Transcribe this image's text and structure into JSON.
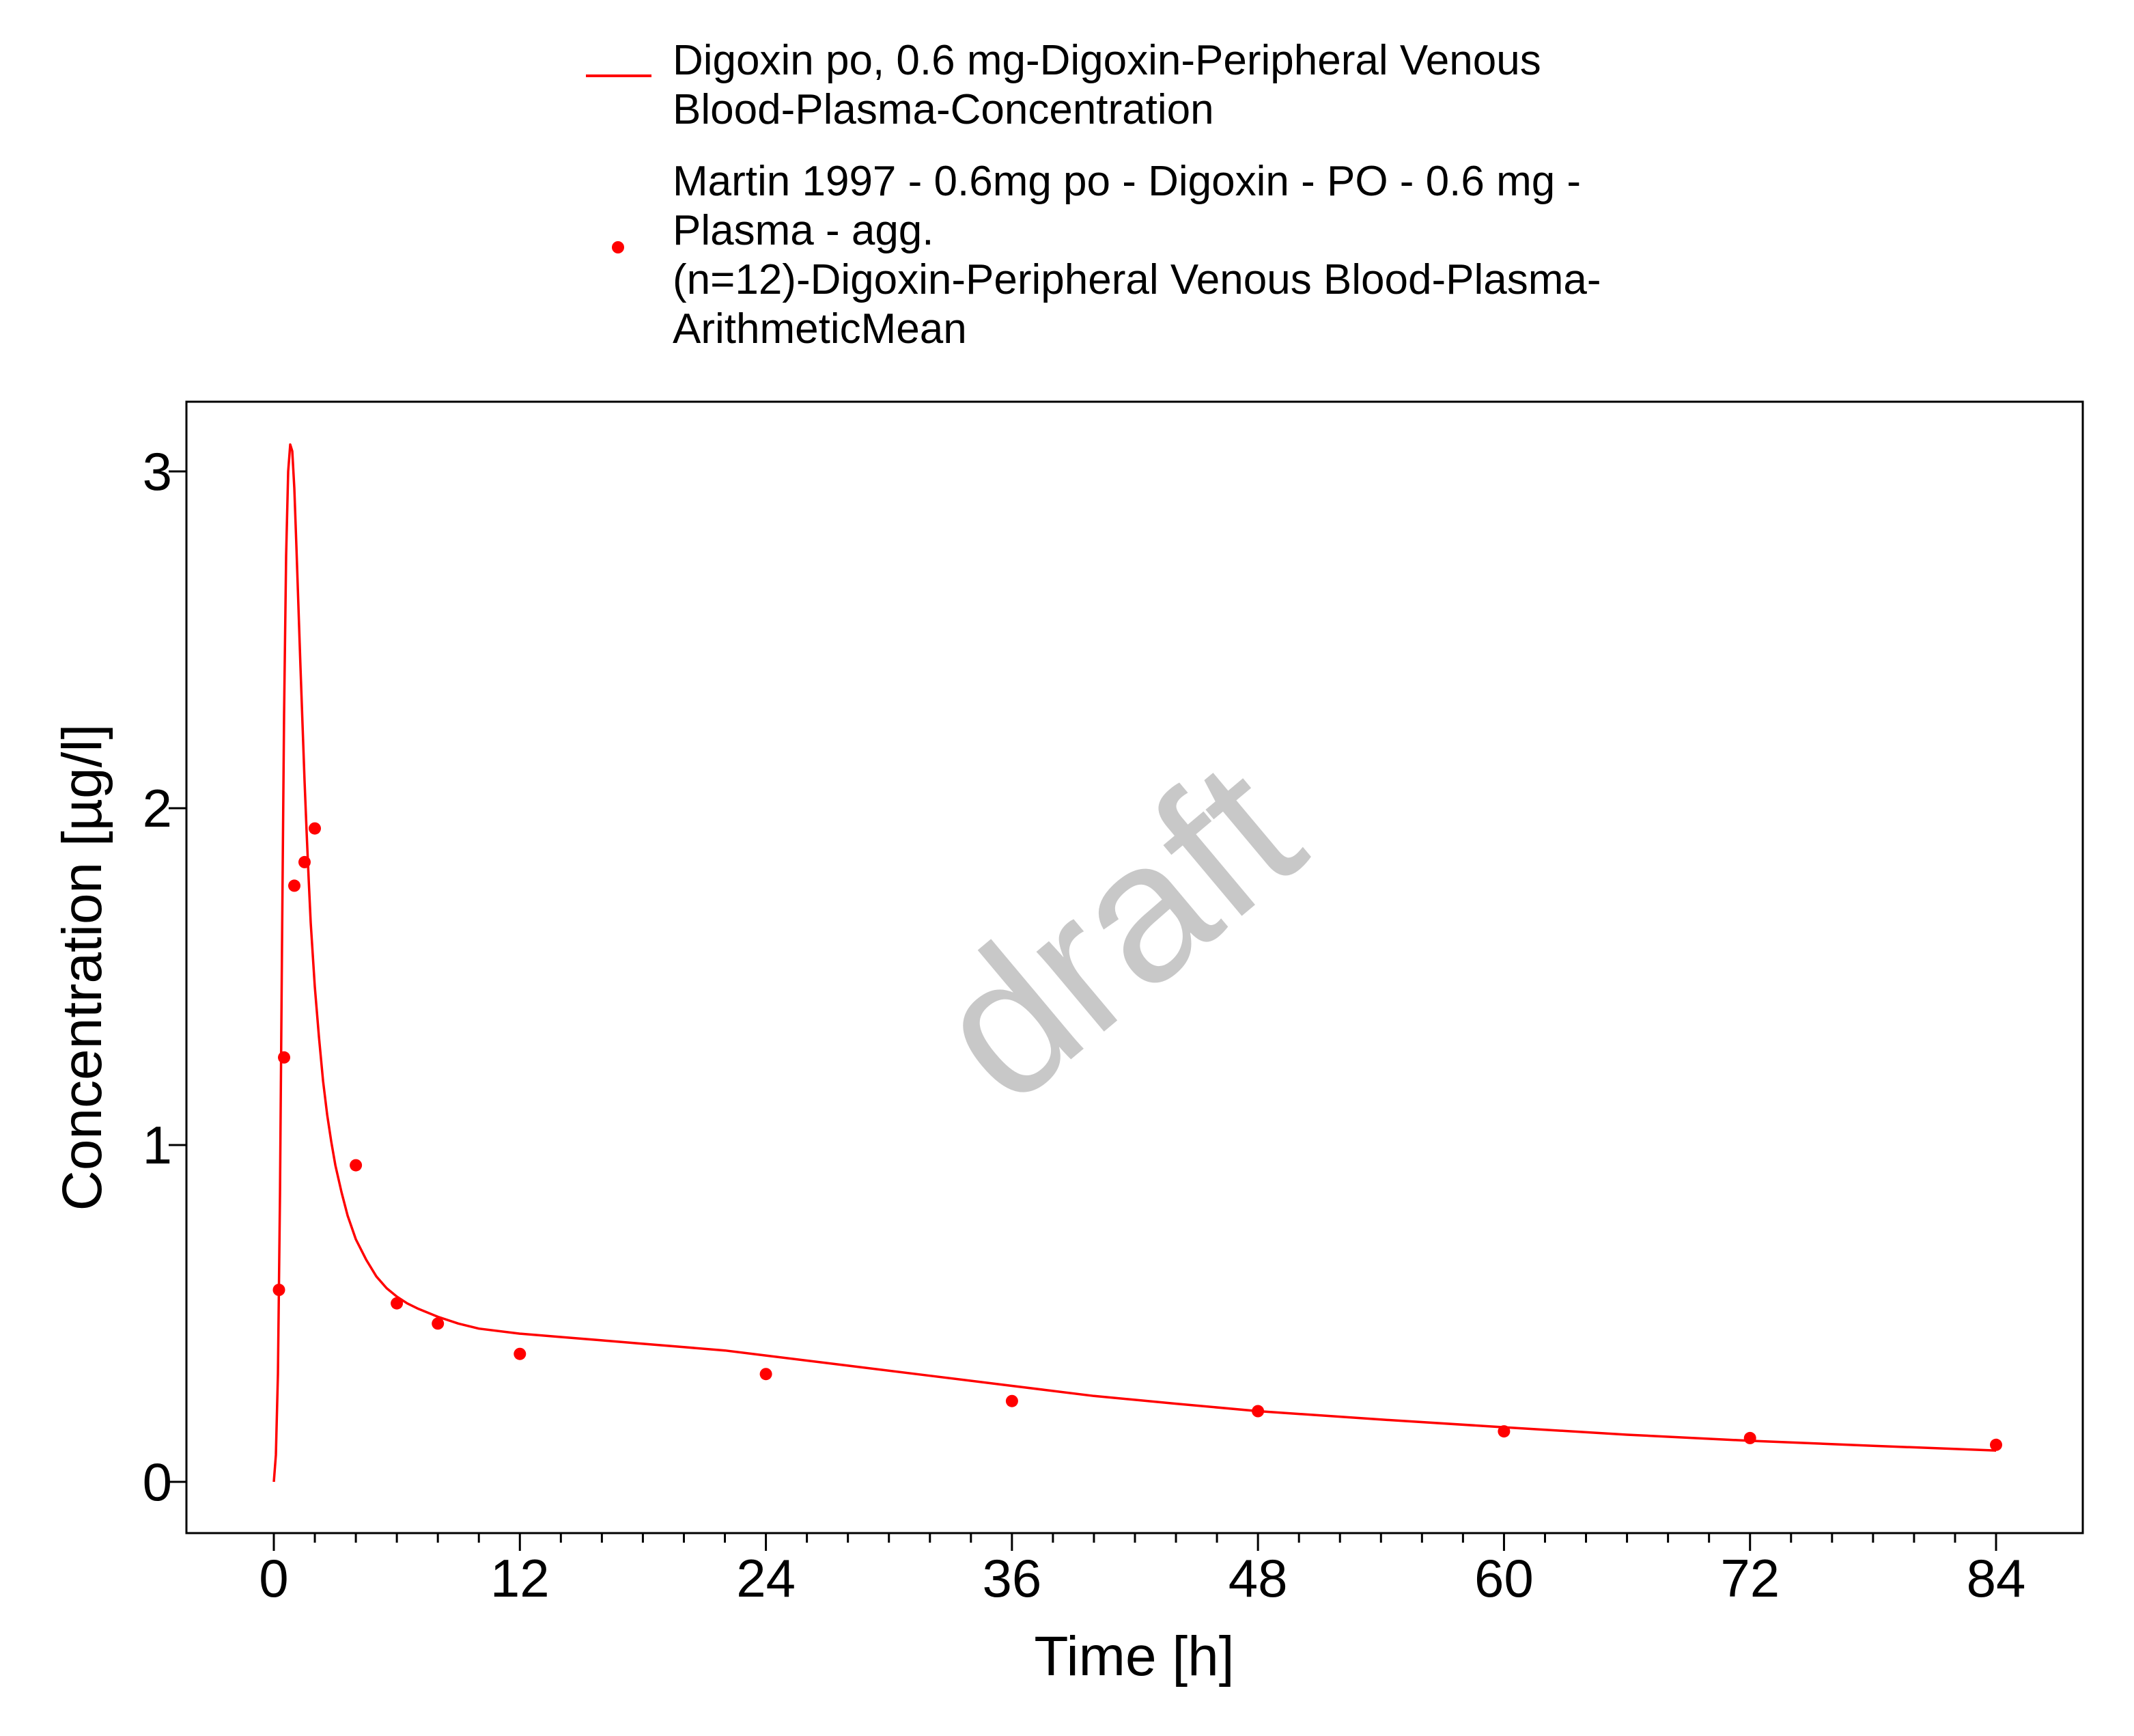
{
  "colors": {
    "series": "#ff0000",
    "axis": "#000000",
    "watermark": "#c8c8c8"
  },
  "watermark": "draft",
  "chart_data": {
    "type": "line",
    "xlabel": "Time [h]",
    "ylabel": "Concentration [µg/l]",
    "xlim": [
      -9,
      222
    ],
    "ylim": [
      -0.15,
      3.22
    ],
    "xticks": [
      0,
      12,
      24,
      36,
      48,
      60,
      72,
      84
    ],
    "xminor_step": 2,
    "yticks": [
      0,
      1,
      2,
      3
    ],
    "grid": false,
    "legend_position": "top",
    "series": [
      {
        "name_lines": [
          "Digoxin po, 0.6 mg-Digoxin-Peripheral Venous",
          "Blood-Plasma-Concentration"
        ],
        "style": "line",
        "x": [
          0,
          0.1,
          0.2,
          0.3,
          0.4,
          0.5,
          0.6,
          0.7,
          0.8,
          0.9,
          1.0,
          1.1,
          1.2,
          1.3,
          1.4,
          1.5,
          1.6,
          1.7,
          1.8,
          2.0,
          2.2,
          2.4,
          2.6,
          2.8,
          3.0,
          3.3,
          3.6,
          4.0,
          4.5,
          5.0,
          5.5,
          6.0,
          6.5,
          7.0,
          8.0,
          9.0,
          10.0,
          12.0,
          14.0,
          16.0,
          18.0,
          20.0,
          22.0,
          24.0,
          28.0,
          32.0,
          36.0,
          40.0,
          44.0,
          48.0,
          54.0,
          60.0,
          66.0,
          72.0,
          78.0,
          84.0
        ],
        "y": [
          0.0,
          0.08,
          0.32,
          0.85,
          1.6,
          2.28,
          2.75,
          3.0,
          3.08,
          3.06,
          2.95,
          2.78,
          2.6,
          2.42,
          2.25,
          2.08,
          1.93,
          1.79,
          1.66,
          1.47,
          1.32,
          1.19,
          1.09,
          1.01,
          0.94,
          0.86,
          0.79,
          0.72,
          0.66,
          0.61,
          0.575,
          0.55,
          0.53,
          0.515,
          0.49,
          0.47,
          0.455,
          0.44,
          0.43,
          0.42,
          0.41,
          0.4,
          0.39,
          0.375,
          0.345,
          0.315,
          0.285,
          0.255,
          0.232,
          0.21,
          0.185,
          0.162,
          0.14,
          0.122,
          0.107,
          0.093
        ]
      },
      {
        "name_lines": [
          "Martin 1997 - 0.6mg po - Digoxin - PO - 0.6 mg -",
          "Plasma - agg.",
          "(n=12)-Digoxin-Peripheral Venous Blood-Plasma-",
          "ArithmeticMean"
        ],
        "style": "scatter",
        "x": [
          0.25,
          0.5,
          1.0,
          1.5,
          2.0,
          4.0,
          6.0,
          8.0,
          12.0,
          24.0,
          36.0,
          48.0,
          60.0,
          72.0,
          84.0
        ],
        "y": [
          0.57,
          1.26,
          1.77,
          1.84,
          1.94,
          0.94,
          0.53,
          0.47,
          0.38,
          0.32,
          0.24,
          0.21,
          0.15,
          0.13,
          0.11
        ]
      }
    ]
  }
}
